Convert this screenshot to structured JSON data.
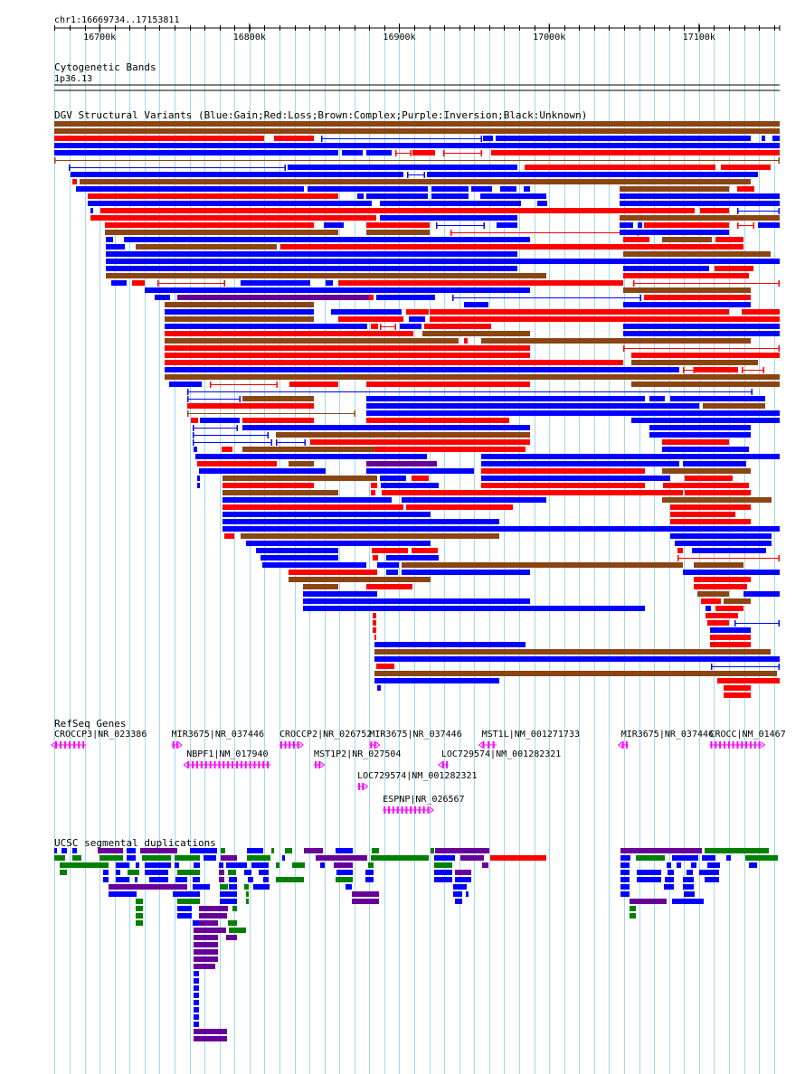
{
  "colors": {
    "gain": "#0000ff",
    "loss": "#ff0000",
    "complex": "#8b4513",
    "inversion": "#660099",
    "gene": "#ff00ff",
    "segdup_green": "#008000",
    "grid": "#a0d8ef"
  },
  "ruler": {
    "region": "chr1:16669734..17153811",
    "start": 16669734,
    "end": 17153811,
    "ticks": [
      {
        "pos": 16700000,
        "label": "16700k"
      },
      {
        "pos": 16800000,
        "label": "16800k"
      },
      {
        "pos": 16900000,
        "label": "16900k"
      },
      {
        "pos": 17000000,
        "label": "17000k"
      },
      {
        "pos": 17100000,
        "label": "17100k"
      }
    ]
  },
  "cytoband": {
    "title": "Cytogenetic Bands",
    "band": "1p36.13"
  },
  "dgv": {
    "title": "DGV Structural Variants (Blue:Gain;Red:Loss;Brown:Complex;Purple:Inversion;Black:Unknown)"
  },
  "refseq": {
    "title": "RefSeq Genes",
    "genes": [
      {
        "label": "CROCCP3|NR_023386",
        "start": 16669734,
        "end": 16691000,
        "strand": "-",
        "row": 0
      },
      {
        "label": "MIR3675|NR_037446",
        "start": 16748000,
        "end": 16753000,
        "strand": "+",
        "row": 0
      },
      {
        "label": "CROCCP2|NR_026752",
        "start": 16820000,
        "end": 16834000,
        "strand": "+",
        "row": 0
      },
      {
        "label": "MIR3675|NR_037446",
        "start": 16880000,
        "end": 16885000,
        "strand": "+",
        "row": 0
      },
      {
        "label": "MST1L|NM_001271733",
        "start": 16955000,
        "end": 16965000,
        "strand": "-",
        "row": 0
      },
      {
        "label": "MIR3675|NR_037446",
        "start": 17048000,
        "end": 17053000,
        "strand": "-",
        "row": 0
      },
      {
        "label": "CROCC|NM_01467",
        "start": 17107000,
        "end": 17142000,
        "strand": "+",
        "row": 0
      },
      {
        "label": "NBPF1|NM_017940",
        "start": 16758000,
        "end": 16814000,
        "strand": "-",
        "row": 1
      },
      {
        "label": "MST1P2|NR_027504",
        "start": 16843000,
        "end": 16848000,
        "strand": "+",
        "row": 1
      },
      {
        "label": "LOC729574|NM_001282321",
        "start": 16928000,
        "end": 16933000,
        "strand": "-",
        "row": 1
      },
      {
        "label": "LOC729574|NM_001282321",
        "start": 16872000,
        "end": 16877000,
        "strand": "+",
        "row": 2
      },
      {
        "label": "ESPNP|NR_026567",
        "start": 16889000,
        "end": 16921000,
        "strand": "+",
        "row": 3
      }
    ]
  },
  "segdups": {
    "title": "UCSC segmental duplications"
  }
}
